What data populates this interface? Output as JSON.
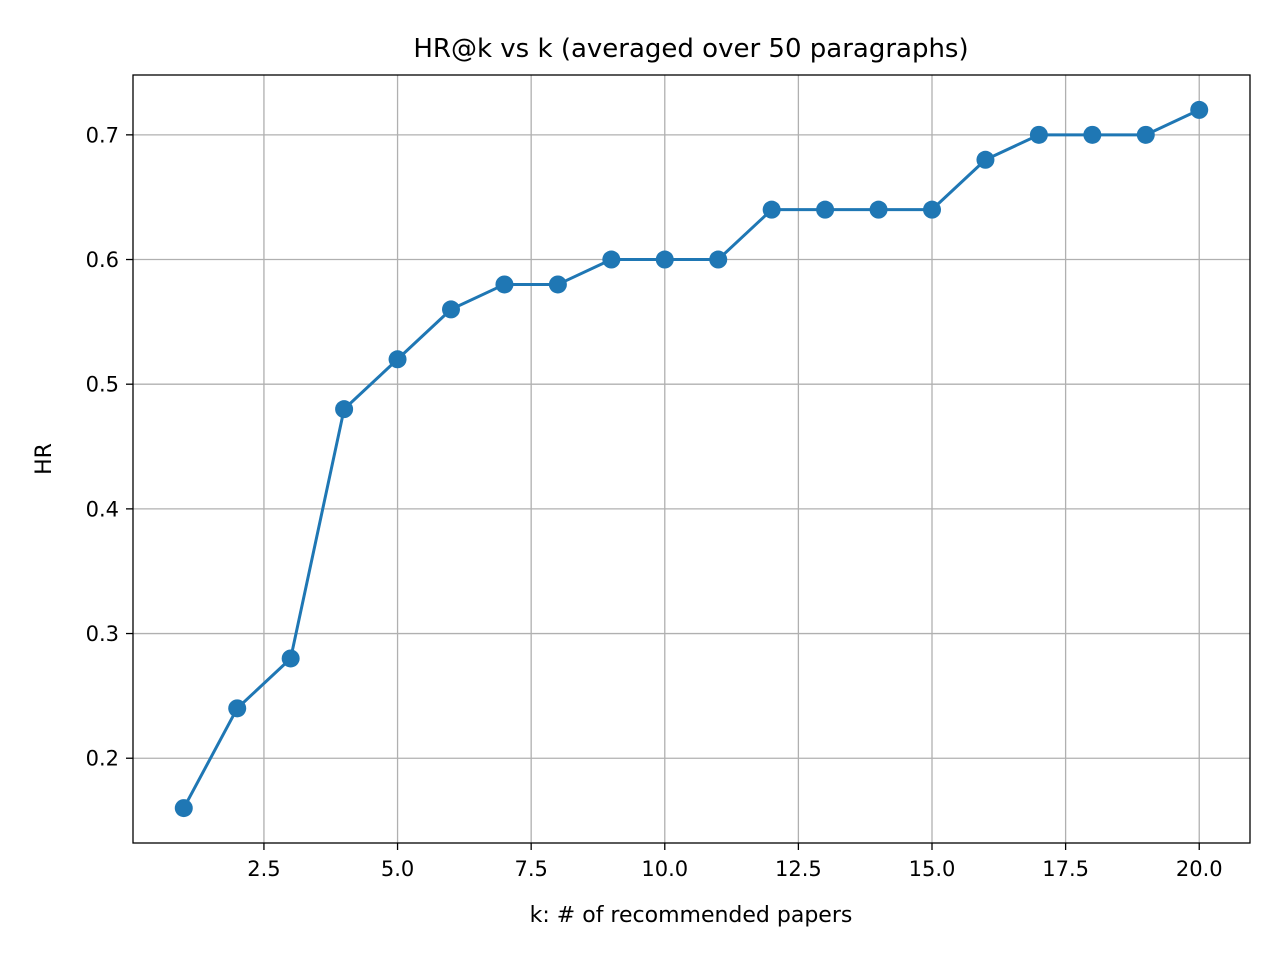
{
  "chart_data": {
    "type": "line",
    "title": "HR@k vs k  (averaged over 50 paragraphs)",
    "xlabel": "k: # of recommended papers",
    "ylabel": "HR",
    "x": [
      1,
      2,
      3,
      4,
      5,
      6,
      7,
      8,
      9,
      10,
      11,
      12,
      13,
      14,
      15,
      16,
      17,
      18,
      19,
      20
    ],
    "series": [
      {
        "values": [
          0.16,
          0.24,
          0.28,
          0.48,
          0.52,
          0.56,
          0.58,
          0.58,
          0.6,
          0.6,
          0.6,
          0.64,
          0.64,
          0.64,
          0.64,
          0.68,
          0.7,
          0.7,
          0.7,
          0.72
        ],
        "color": "#1f77b4",
        "marker": "circle"
      }
    ],
    "xlim": [
      0.05,
      20.95
    ],
    "ylim": [
      0.132,
      0.748
    ],
    "xticks": [
      2.5,
      5.0,
      7.5,
      10.0,
      12.5,
      15.0,
      17.5,
      20.0
    ],
    "xtick_labels": [
      "2.5",
      "5.0",
      "7.5",
      "10.0",
      "12.5",
      "15.0",
      "17.5",
      "20.0"
    ],
    "yticks": [
      0.2,
      0.3,
      0.4,
      0.5,
      0.6,
      0.7
    ],
    "ytick_labels": [
      "0.2",
      "0.3",
      "0.4",
      "0.5",
      "0.6",
      "0.7"
    ],
    "grid": true,
    "legend": "none"
  }
}
